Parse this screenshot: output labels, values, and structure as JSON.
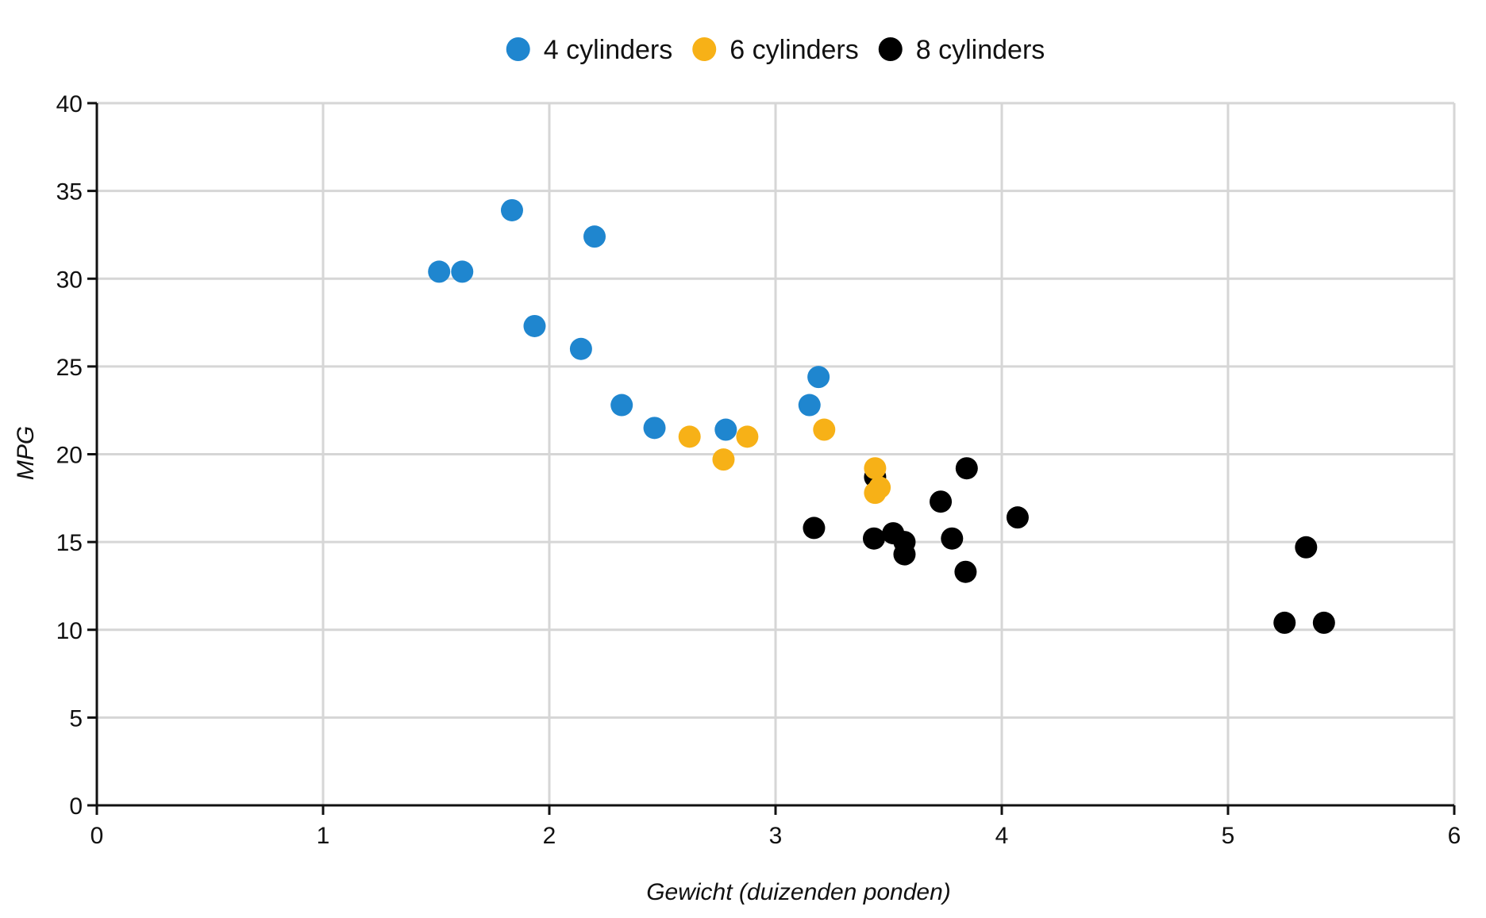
{
  "chart_data": {
    "type": "scatter",
    "title": "",
    "xlabel": "Gewicht (duizenden ponden)",
    "ylabel": "MPG",
    "xlim": [
      0,
      6
    ],
    "ylim": [
      0,
      40
    ],
    "x_ticks": [
      "0",
      "1",
      "2",
      "3",
      "4",
      "5",
      "6"
    ],
    "y_ticks": [
      "0",
      "5",
      "10",
      "15",
      "20",
      "25",
      "30",
      "35",
      "40"
    ],
    "grid": true,
    "legend_position": "top-center",
    "series": [
      {
        "name": "4 cylinders",
        "color": "#1f86cf",
        "points": [
          {
            "x": 1.513,
            "y": 30.4
          },
          {
            "x": 1.615,
            "y": 30.4
          },
          {
            "x": 1.835,
            "y": 33.9
          },
          {
            "x": 1.935,
            "y": 27.3
          },
          {
            "x": 2.14,
            "y": 26.0
          },
          {
            "x": 2.2,
            "y": 32.4
          },
          {
            "x": 2.32,
            "y": 22.8
          },
          {
            "x": 2.465,
            "y": 21.5
          },
          {
            "x": 2.78,
            "y": 21.4
          },
          {
            "x": 3.15,
            "y": 22.8
          },
          {
            "x": 3.19,
            "y": 24.4
          }
        ]
      },
      {
        "name": "6 cylinders",
        "color": "#f7b117",
        "points": [
          {
            "x": 2.62,
            "y": 21.0
          },
          {
            "x": 2.77,
            "y": 19.7
          },
          {
            "x": 2.875,
            "y": 21.0
          },
          {
            "x": 3.215,
            "y": 21.4
          },
          {
            "x": 3.44,
            "y": 19.2
          },
          {
            "x": 3.44,
            "y": 17.8
          },
          {
            "x": 3.46,
            "y": 18.1
          }
        ]
      },
      {
        "name": "8 cylinders",
        "color": "#000000",
        "points": [
          {
            "x": 3.17,
            "y": 15.8
          },
          {
            "x": 3.435,
            "y": 15.2
          },
          {
            "x": 3.44,
            "y": 18.7
          },
          {
            "x": 3.52,
            "y": 15.5
          },
          {
            "x": 3.57,
            "y": 15.0
          },
          {
            "x": 3.57,
            "y": 14.3
          },
          {
            "x": 3.73,
            "y": 17.3
          },
          {
            "x": 3.78,
            "y": 15.2
          },
          {
            "x": 3.84,
            "y": 13.3
          },
          {
            "x": 3.845,
            "y": 19.2
          },
          {
            "x": 4.07,
            "y": 16.4
          },
          {
            "x": 5.25,
            "y": 10.4
          },
          {
            "x": 5.345,
            "y": 14.7
          },
          {
            "x": 5.424,
            "y": 10.4
          }
        ]
      }
    ]
  }
}
